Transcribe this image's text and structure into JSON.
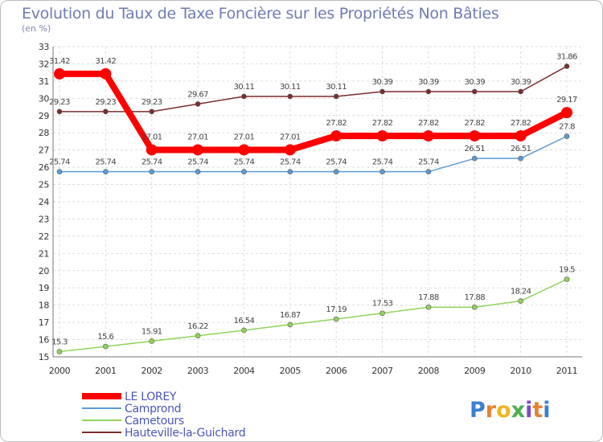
{
  "chart_data": {
    "type": "line",
    "title": "Evolution du Taux de Taxe Foncière sur les Propriétés Non Bâties",
    "subtitle": "(en %)",
    "xlabel": "",
    "ylabel": "",
    "ylim": [
      15,
      33
    ],
    "yticks": [
      15,
      16,
      17,
      18,
      19,
      20,
      21,
      22,
      23,
      24,
      25,
      26,
      27,
      28,
      29,
      30,
      31,
      32,
      33
    ],
    "grid": true,
    "legend_position": "bottom-left",
    "categories": [
      "2000",
      "2001",
      "2002",
      "2003",
      "2004",
      "2005",
      "2006",
      "2007",
      "2008",
      "2009",
      "2010",
      "2011"
    ],
    "series": [
      {
        "name": "Hauteville-la-Guichard",
        "color": "#7b2d2d",
        "values": [
          29.23,
          29.23,
          29.23,
          29.67,
          30.11,
          30.11,
          30.11,
          30.39,
          30.39,
          30.39,
          30.39,
          31.86
        ],
        "labels": [
          "29.23",
          "29.23",
          "29.23",
          "29.67",
          "30.11",
          "30.11",
          "30.11",
          "30.39",
          "30.39",
          "30.39",
          "30.39",
          "31.86"
        ]
      },
      {
        "name": "Camprond",
        "color": "#5b9bd5",
        "values": [
          25.74,
          25.74,
          25.74,
          25.74,
          25.74,
          25.74,
          25.74,
          25.74,
          25.74,
          26.51,
          26.51,
          27.8
        ],
        "labels": [
          "25.74",
          "25.74",
          "25.74",
          "25.74",
          "25.74",
          "25.74",
          "25.74",
          "25.74",
          "25.74",
          "26.51",
          "26.51",
          "27.8"
        ]
      },
      {
        "name": "Cametours",
        "color": "#8fd45a",
        "values": [
          15.3,
          15.6,
          15.91,
          16.22,
          16.54,
          16.87,
          17.19,
          17.53,
          17.88,
          17.88,
          18.24,
          19.5
        ],
        "labels": [
          "15.3",
          "15.6",
          "15.91",
          "16.22",
          "16.54",
          "16.87",
          "17.19",
          "17.53",
          "17.88",
          "17.88",
          "18.24",
          "19.5"
        ]
      },
      {
        "name": "LE LOREY",
        "color": "#ff0000",
        "values": [
          31.42,
          31.42,
          27.01,
          27.01,
          27.01,
          27.01,
          27.82,
          27.82,
          27.82,
          27.82,
          27.82,
          29.17
        ],
        "labels": [
          "31.42",
          "31.42",
          "27.01",
          "27.01",
          "27.01",
          "27.01",
          "27.82",
          "27.82",
          "27.82",
          "27.82",
          "27.82",
          "29.17"
        ]
      }
    ],
    "legend_order": [
      "LE LOREY",
      "Camprond",
      "Cametours",
      "Hauteville-la-Guichard"
    ]
  },
  "brand": {
    "name": "Proxiti",
    "letters": [
      {
        "char": "P",
        "color": "#3b7fd1"
      },
      {
        "char": "r",
        "color": "#e8812d"
      },
      {
        "char": "o",
        "color": "#f0b323"
      },
      {
        "char": "x",
        "color": "#4caf50"
      },
      {
        "char": "i",
        "color": "#7a4cc2"
      },
      {
        "char": "t",
        "color": "#e8812d"
      },
      {
        "char": "i",
        "color": "#3b7fd1"
      }
    ]
  }
}
